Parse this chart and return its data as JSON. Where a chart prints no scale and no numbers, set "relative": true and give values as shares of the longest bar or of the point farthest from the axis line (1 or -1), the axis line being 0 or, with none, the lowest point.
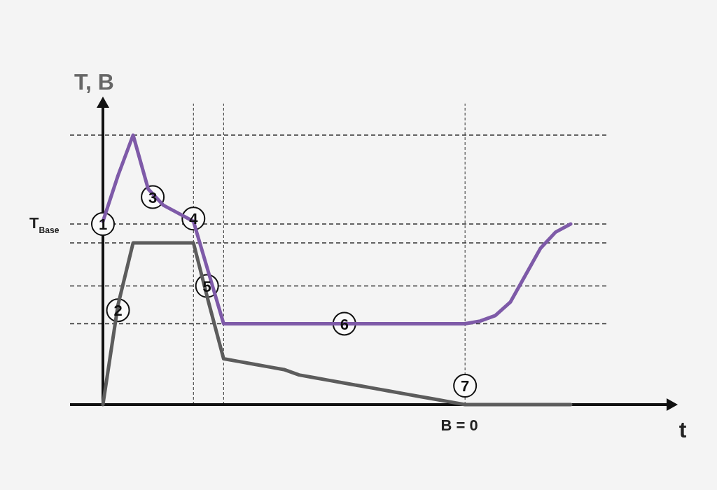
{
  "chart_data": {
    "type": "line",
    "relative": true,
    "xlabel": "t",
    "ylabel": "T, B",
    "line_style": "solid",
    "grid": "x",
    "categories": [
      null,
      null,
      null,
      null,
      null,
      null,
      null,
      null,
      null,
      null,
      null,
      null,
      null,
      null,
      null,
      null,
      null,
      null,
      null,
      null,
      null,
      null,
      null,
      null,
      null,
      null,
      null,
      null,
      null,
      null,
      null,
      null
    ],
    "series": [
      {
        "color": "#7e5aa8",
        "values": [
          0.68,
          0.85,
          1,
          0.8,
          0.74,
          0.71,
          0.68,
          0.49,
          0.3,
          0.3,
          0.3,
          0.3,
          0.3,
          0.3,
          0.3,
          0.3,
          0.3,
          0.3,
          0.3,
          0.3,
          0.3,
          0.3,
          0.3,
          0.3,
          0.3,
          0.31,
          0.33,
          0.38,
          0.48,
          0.58,
          0.64,
          0.67
        ]
      },
      {
        "color": "#5c5c5c",
        "values": [
          0,
          0.37,
          0.6,
          0.6,
          0.6,
          0.6,
          0.6,
          0.38,
          0.17,
          0.16,
          0.15,
          0.14,
          0.13,
          0.11,
          0.1,
          0.09,
          0.08,
          0.07,
          0.06,
          0.05,
          0.04,
          0.03,
          0.02,
          0.01,
          0,
          0,
          0,
          0,
          0,
          0,
          0,
          0
        ]
      }
    ],
    "ref_lines": [
      {
        "axis": "y",
        "value": 1,
        "label": null
      },
      {
        "axis": "y",
        "value": 0.67,
        "label": "T$_{Base}$"
      },
      {
        "axis": "y",
        "value": 0.6,
        "label": null
      },
      {
        "axis": "y",
        "value": 0.44,
        "label": null
      },
      {
        "axis": "y",
        "value": 0.3,
        "label": null
      }
    ],
    "annotations": [
      {
        "text": "1",
        "y": 0.67
      },
      {
        "text": "2",
        "y": 0.35
      },
      {
        "text": "3",
        "y": 0.77
      },
      {
        "text": "4",
        "y": 0.69
      },
      {
        "text": "5",
        "y": 0.44
      },
      {
        "text": "6",
        "y": 0.3
      },
      {
        "text": "7",
        "y": 0.07
      },
      {
        "text": "B = 0",
        "y": 0
      }
    ]
  }
}
